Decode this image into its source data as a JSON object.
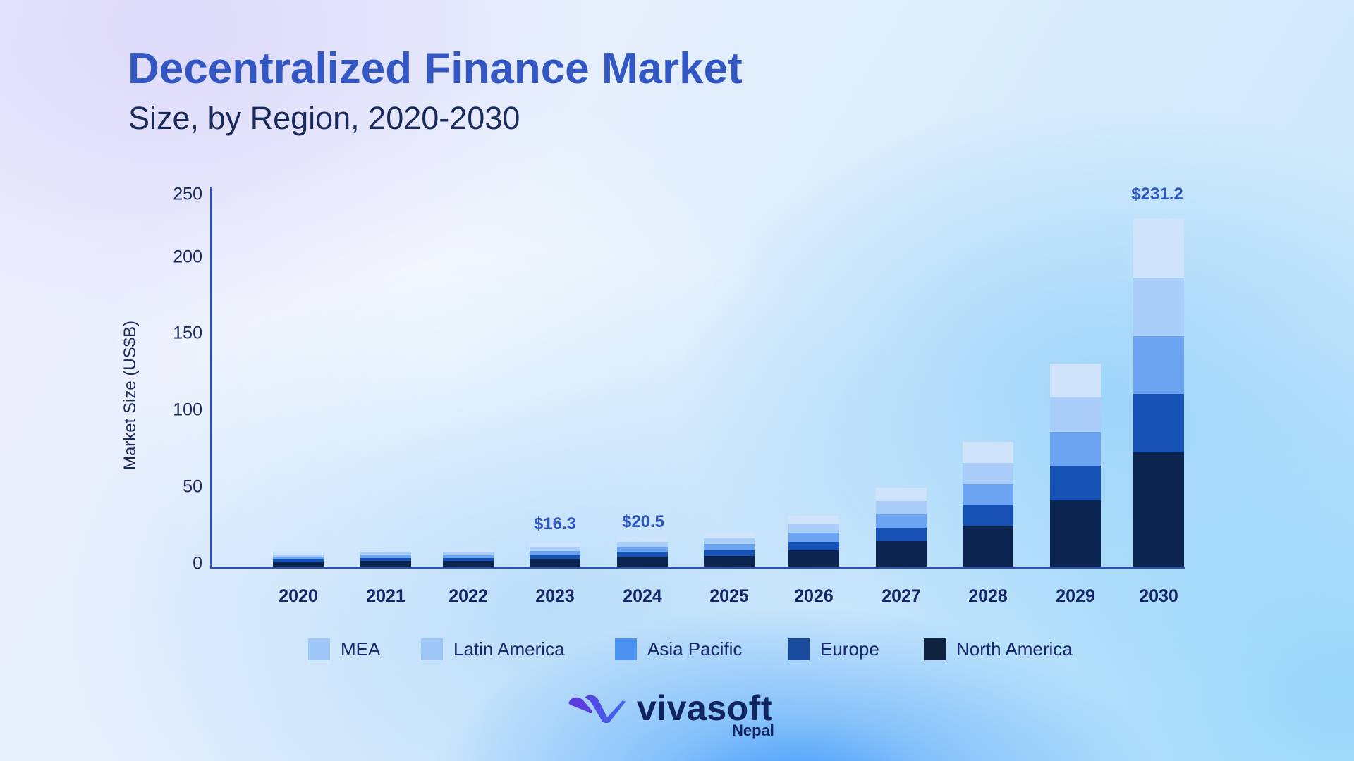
{
  "header": {
    "title": "Decentralized Finance Market",
    "subtitle": "Size, by Region, 2020-2030"
  },
  "colors": {
    "title": "#3358c4",
    "axis": "#2f4fb8",
    "MEA": "#cfe3fb",
    "Latin America": "#a9cdf8",
    "Asia Pacific": "#6da4f2",
    "Europe": "#1652b6",
    "North America": "#0b2450",
    "legend_MEA": "#9ec6f7",
    "legend_Latin America": "#9ec6f7",
    "legend_Asia Pacific": "#4a91f0",
    "legend_Europe": "#1a4a9c",
    "legend_North America": "#0f2240"
  },
  "legend": [
    {
      "label": "MEA",
      "key": "MEA"
    },
    {
      "label": "Latin America",
      "key": "Latin America"
    },
    {
      "label": "Asia Pacific",
      "key": "Asia Pacific"
    },
    {
      "label": "Europe",
      "key": "Europe"
    },
    {
      "label": "North America",
      "key": "North America"
    }
  ],
  "annotations": [
    {
      "category": "2023",
      "text": "$16.3"
    },
    {
      "category": "2024",
      "text": "$20.5"
    },
    {
      "category": "2030",
      "text": "$231.2"
    }
  ],
  "logo": {
    "name": "vivasoft",
    "sub": "Nepal"
  },
  "chart_data": {
    "type": "bar",
    "stacked": true,
    "title": "Decentralized Finance Market",
    "subtitle": "Size, by Region, 2020-2030",
    "xlabel": "",
    "ylabel": "Market Size (US$B)",
    "ylim": [
      0,
      250
    ],
    "yticks": [
      0,
      50,
      100,
      150,
      200,
      250
    ],
    "grid": false,
    "legend_position": "bottom",
    "categories": [
      "2020",
      "2021",
      "2022",
      "2023",
      "2024",
      "2025",
      "2026",
      "2027",
      "2028",
      "2029",
      "2030"
    ],
    "totals": [
      10.3,
      12.6,
      12.1,
      16.3,
      20.5,
      22.9,
      34.1,
      52.8,
      83.1,
      135.0,
      231.2
    ],
    "series": [
      {
        "name": "North America",
        "values": [
          3.4,
          4.2,
          4.0,
          5.4,
          6.8,
          7.6,
          11.3,
          17.4,
          27.4,
          44.6,
          76.1
        ]
      },
      {
        "name": "Europe",
        "values": [
          1.7,
          2.1,
          2.0,
          2.7,
          3.4,
          3.8,
          5.7,
          8.9,
          14.0,
          22.6,
          38.8
        ]
      },
      {
        "name": "Asia Pacific",
        "values": [
          1.7,
          2.1,
          2.0,
          2.7,
          3.4,
          3.8,
          5.7,
          8.8,
          13.9,
          22.6,
          38.3
        ]
      },
      {
        "name": "Latin America",
        "values": [
          1.7,
          2.1,
          2.0,
          2.7,
          3.4,
          3.8,
          5.7,
          8.8,
          13.9,
          22.6,
          38.8
        ]
      },
      {
        "name": "MEA",
        "values": [
          1.8,
          2.1,
          2.1,
          2.8,
          3.5,
          3.9,
          5.7,
          8.9,
          13.9,
          22.6,
          39.2
        ]
      }
    ],
    "annotations": [
      {
        "x": "2023",
        "text": "$16.3"
      },
      {
        "x": "2024",
        "text": "$20.5"
      },
      {
        "x": "2030",
        "text": "$231.2"
      }
    ]
  }
}
